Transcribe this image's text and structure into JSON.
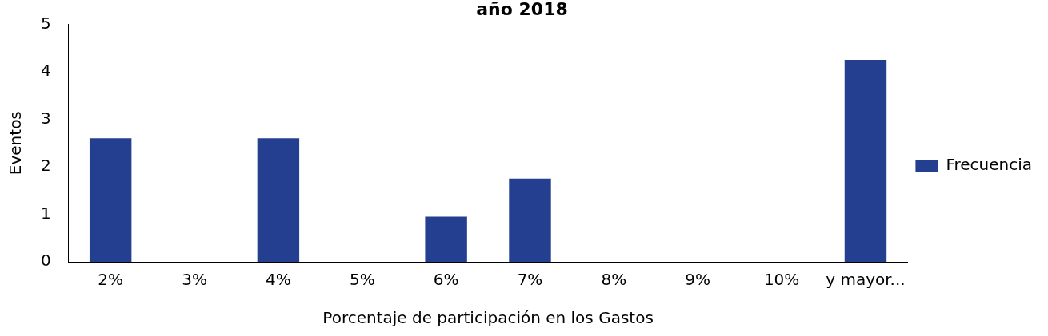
{
  "chart_data": {
    "type": "bar",
    "title": "año 2018",
    "xlabel": "Porcentaje de participación en los Gastos",
    "ylabel": "Eventos",
    "categories": [
      "2%",
      "3%",
      "4%",
      "5%",
      "6%",
      "7%",
      "8%",
      "9%",
      "10%",
      "y mayor..."
    ],
    "series": [
      {
        "name": "Frecuencia",
        "color": "#243f8f",
        "values": [
          2.6,
          0,
          2.6,
          0,
          0.95,
          1.75,
          0,
          0,
          0,
          4.25
        ]
      }
    ],
    "ylim": [
      0,
      5
    ],
    "yticks": [
      0,
      1,
      2,
      3,
      4,
      5
    ],
    "grid": false,
    "legend": "right"
  }
}
